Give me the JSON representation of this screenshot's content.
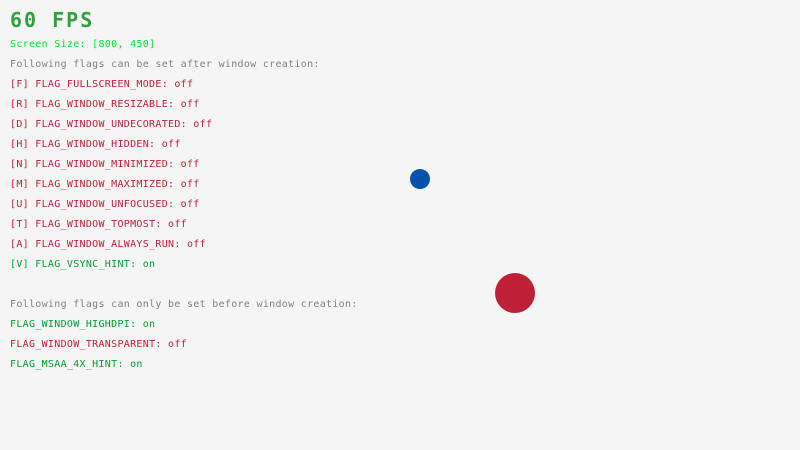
{
  "fps": "60 FPS",
  "screen_size": "Screen Size: [800, 450]",
  "after_header": "Following flags can be set after window creation:",
  "after_flags": [
    {
      "label": "[F] FLAG_FULLSCREEN_MODE: ",
      "state": "off"
    },
    {
      "label": "[R] FLAG_WINDOW_RESIZABLE: ",
      "state": "off"
    },
    {
      "label": "[D] FLAG_WINDOW_UNDECORATED: ",
      "state": "off"
    },
    {
      "label": "[H] FLAG_WINDOW_HIDDEN: ",
      "state": "off"
    },
    {
      "label": "[N] FLAG_WINDOW_MINIMIZED: ",
      "state": "off"
    },
    {
      "label": "[M] FLAG_WINDOW_MAXIMIZED: ",
      "state": "off"
    },
    {
      "label": "[U] FLAG_WINDOW_UNFOCUSED: ",
      "state": "off"
    },
    {
      "label": "[T] FLAG_WINDOW_TOPMOST: ",
      "state": "off"
    },
    {
      "label": "[A] FLAG_WINDOW_ALWAYS_RUN: ",
      "state": "off"
    },
    {
      "label": "[V] FLAG_VSYNC_HINT: ",
      "state": "on"
    }
  ],
  "before_header": "Following flags can only be set before window creation:",
  "before_flags": [
    {
      "label": "FLAG_WINDOW_HIGHDPI: ",
      "state": "on"
    },
    {
      "label": "FLAG_WINDOW_TRANSPARENT: ",
      "state": "off"
    },
    {
      "label": "FLAG_MSAA_4X_HINT: ",
      "state": "on"
    }
  ],
  "colors": {
    "background": "#f5f5f5",
    "on": "#009e2f",
    "off": "#be2137",
    "fps": "#30a040",
    "screen_size": "#00e430",
    "header": "#828282",
    "small_ball": "#0052ac",
    "large_ball": "#be2137"
  }
}
